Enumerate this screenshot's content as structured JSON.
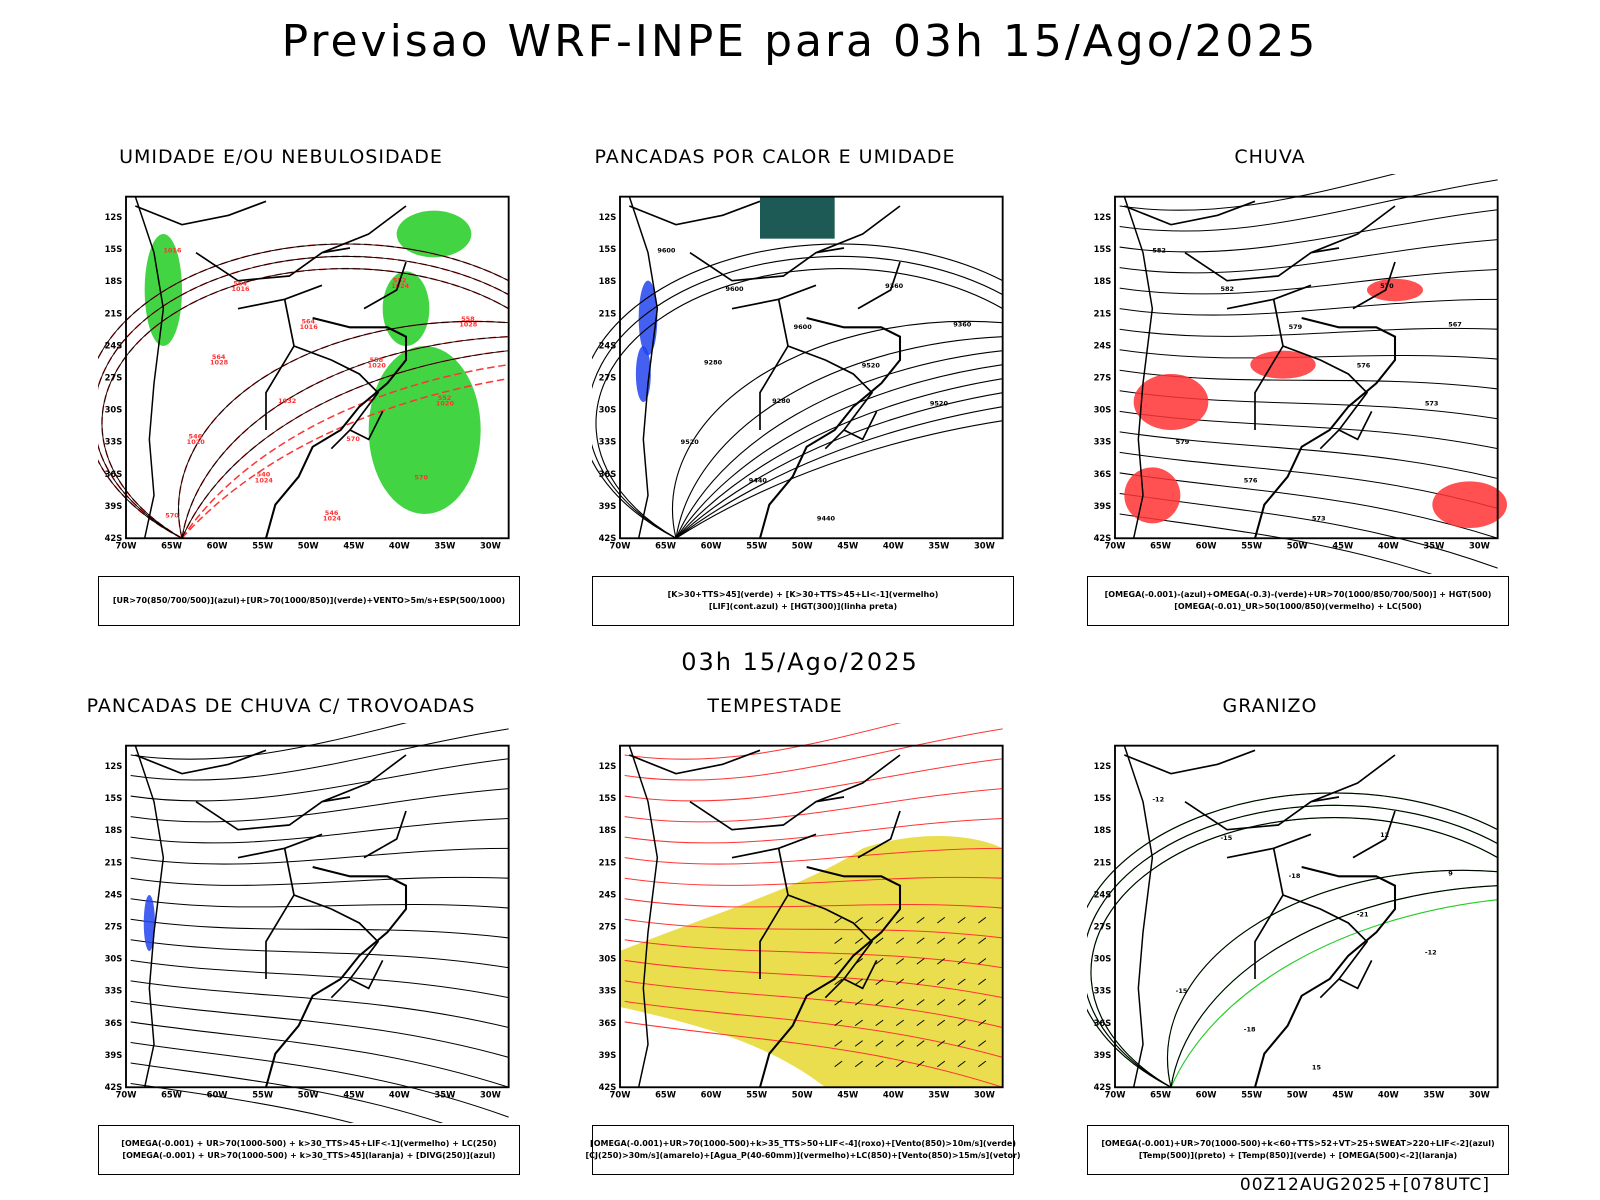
{
  "header": {
    "title": "Previsao WRF-INPE  para 03h 15/Ago/2025"
  },
  "middle": {
    "title": "03h 15/Ago/2025"
  },
  "footer": {
    "run": "00Z12AUG2025+[078UTC]"
  },
  "axes": {
    "lat_labels": [
      "12S",
      "15S",
      "18S",
      "21S",
      "24S",
      "27S",
      "30S",
      "33S",
      "36S",
      "39S",
      "42S"
    ],
    "lon_labels": [
      "70W",
      "65W",
      "60W",
      "55W",
      "50W",
      "45W",
      "40W",
      "35W",
      "30W"
    ]
  },
  "panels": [
    {
      "title": "UMIDADE E/OU NEBULOSIDADE",
      "legend": [
        "[UR>70(850/700/500)](azul)+[UR>70(1000/850)](verde)+VENTO>5m/s+ESP(500/1000)"
      ],
      "labels": [
        "1016",
        "1016",
        "1016",
        "1020",
        "1020",
        "1020",
        "1024",
        "1024",
        "1024",
        "1028",
        "1028",
        "1032",
        "570",
        "570",
        "570",
        "564",
        "564",
        "558",
        "552",
        "546",
        "540",
        "546",
        "552",
        "558",
        "564"
      ]
    },
    {
      "title": "PANCADAS POR CALOR E UMIDADE",
      "legend": [
        "[K>30+TTS>45](verde) + [K>30+TTS>45+LI<-1](vermelho)",
        "[LIF](cont.azul) + [HGT(300)](linha preta)"
      ],
      "labels": [
        "9600",
        "9600",
        "9600",
        "9520",
        "9520",
        "9520",
        "9440",
        "9440",
        "9360",
        "9360",
        "9280",
        "9280"
      ]
    },
    {
      "title": "CHUVA",
      "legend": [
        "[OMEGA(-0.001)-(azul)+OMEGA(-0.3)-(verde)+UR>70(1000/850/700/500)] + HGT(500)",
        "[OMEGA(-0.01)_UR>50(1000/850)(vermelho) + LC(500)"
      ],
      "labels": [
        "582",
        "582",
        "579",
        "576",
        "573",
        "579",
        "576",
        "573",
        "570",
        "567"
      ]
    },
    {
      "title": "PANCADAS DE CHUVA C/ TROVOADAS",
      "legend": [
        "[OMEGA(-0.001) + UR>70(1000-500) + k>30_TTS>45+LIF<-1](vermelho) + LC(250)",
        "[OMEGA(-0.001) + UR>70(1000-500) + k>30_TTS>45](laranja) + [DIVG(250)](azul)"
      ],
      "labels": []
    },
    {
      "title": "TEMPESTADE",
      "legend": [
        "[OMEGA(-0.001)+UR>70(1000-500)+k>35_TTS>50+LIF<-4](roxo)+[Vento(850)>10m/s](verde)",
        "[CJ(250)>30m/s](amarelo)+[Agua_P(40-60mm)](vermelho)+LC(850)+[Vento(850)>15m/s](vetor)"
      ],
      "labels": []
    },
    {
      "title": "GRANIZO",
      "legend": [
        "[OMEGA(-0.001)+UR>70(1000-500)+k<60+TTS>52+VT>25+SWEAT>220+LIF<-2](azul)",
        "[Temp(500)](preto) + [Temp(850)](verde) + [OMEGA(500)<-2](laranja)"
      ],
      "labels": [
        "-12",
        "-15",
        "-18",
        "-21",
        "-12",
        "-15",
        "-18",
        "15",
        "12",
        "9"
      ]
    }
  ],
  "colors": {
    "frame": "#000000",
    "red": "#ff3333",
    "green": "#22cc22",
    "blue": "#2244ee",
    "yellow": "#e6d830",
    "teal": "#1e5a55"
  }
}
